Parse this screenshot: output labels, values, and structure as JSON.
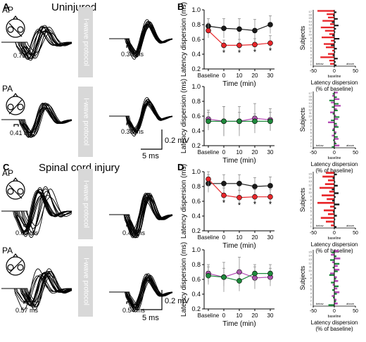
{
  "panels": {
    "A": "A",
    "B": "B",
    "C": "C",
    "D": "D"
  },
  "titles": {
    "uninjured": "Uninjured",
    "sci": "Spinal cord injury"
  },
  "protocol_label": "I-wave protocol",
  "coil": {
    "ap": "AP",
    "pa": "PA"
  },
  "waveforms": {
    "A_ap_pre": "0.73 ms",
    "A_ap_post": "0.36 ms",
    "A_pa_pre": "0.41 ms",
    "A_pa_post": "0.38 ms",
    "C_ap_pre": "0.67 ms",
    "C_ap_post": "0.42 ms",
    "C_pa_pre": "0.57 ms",
    "C_pa_post": "0.54 ms"
  },
  "scalebar": {
    "voltage": "0.2 mV",
    "time": "5 ms"
  },
  "axis_text": {
    "ylabel": "Latency dispersion (ms)",
    "xlabel": "Time (min)",
    "subjects": "Subjects",
    "bar_xlabel": "Latency dispersion",
    "bar_xlabel2": "(% of baseline)",
    "below": "below",
    "baseline": "baseline",
    "above": "above"
  },
  "colors": {
    "black": "#1a1a1a",
    "red": "#e8262a",
    "green": "#1f8a3c",
    "magenta": "#b44bb5",
    "gray": "#8c8c8c"
  },
  "chart_data": [
    {
      "id": "B_top",
      "type": "line",
      "categories": [
        "Baseline",
        "0",
        "10",
        "20",
        "30"
      ],
      "ylim": [
        0.2,
        1.0
      ],
      "yticks": [
        0.2,
        0.4,
        0.6,
        0.8,
        1.0
      ],
      "xlabel": "Time (min)",
      "ylabel": "Latency dispersion (ms)",
      "series": [
        {
          "color": "black",
          "values": [
            0.78,
            0.75,
            0.74,
            0.72,
            0.8
          ],
          "err": [
            0.1,
            0.13,
            0.14,
            0.15,
            0.12
          ]
        },
        {
          "color": "red",
          "values": [
            0.72,
            0.52,
            0.52,
            0.53,
            0.55
          ],
          "err": [
            0.1,
            0.07,
            0.08,
            0.08,
            0.1
          ]
        }
      ],
      "stars": [
        1,
        2,
        3,
        4
      ]
    },
    {
      "id": "B_bottom",
      "type": "line",
      "categories": [
        "Baseline",
        "0",
        "10",
        "20",
        "30"
      ],
      "ylim": [
        0.2,
        1.0
      ],
      "yticks": [
        0.2,
        0.4,
        0.6,
        0.8,
        1.0
      ],
      "xlabel": "Time (min)",
      "ylabel": "Latency dispersion (ms)",
      "series": [
        {
          "color": "magenta",
          "values": [
            0.56,
            0.53,
            0.53,
            0.57,
            0.55
          ],
          "err": [
            0.12,
            0.2,
            0.2,
            0.2,
            0.15
          ]
        },
        {
          "color": "green",
          "values": [
            0.53,
            0.53,
            0.53,
            0.53,
            0.53
          ],
          "err": [
            0.12,
            0.2,
            0.12,
            0.1,
            0.12
          ]
        }
      ],
      "stars": []
    },
    {
      "id": "D_top",
      "type": "line",
      "categories": [
        "Baseline",
        "0",
        "10",
        "20",
        "30"
      ],
      "ylim": [
        0.2,
        1.0
      ],
      "yticks": [
        0.2,
        0.4,
        0.6,
        0.8,
        1.0
      ],
      "xlabel": "Time (min)",
      "ylabel": "Latency dispersion (ms)",
      "series": [
        {
          "color": "black",
          "values": [
            0.84,
            0.84,
            0.84,
            0.8,
            0.81
          ],
          "err": [
            0.12,
            0.12,
            0.12,
            0.12,
            0.12
          ]
        },
        {
          "color": "red",
          "values": [
            0.9,
            0.68,
            0.65,
            0.66,
            0.66
          ],
          "err": [
            0.1,
            0.1,
            0.1,
            0.1,
            0.1
          ]
        }
      ],
      "stars": [
        1,
        2,
        3,
        4
      ]
    },
    {
      "id": "D_bottom",
      "type": "line",
      "categories": [
        "Baseline",
        "0",
        "10",
        "20",
        "30"
      ],
      "ylim": [
        0.2,
        1.0
      ],
      "yticks": [
        0.2,
        0.4,
        0.6,
        0.8,
        1.0
      ],
      "xlabel": "Time (min)",
      "ylabel": "Latency dispersion (ms)",
      "series": [
        {
          "color": "magenta",
          "values": [
            0.68,
            0.63,
            0.7,
            0.62,
            0.63
          ],
          "err": [
            0.12,
            0.2,
            0.2,
            0.15,
            0.12
          ]
        },
        {
          "color": "green",
          "values": [
            0.65,
            0.63,
            0.58,
            0.68,
            0.68
          ],
          "err": [
            0.12,
            0.12,
            0.14,
            0.12,
            0.12
          ]
        }
      ],
      "stars": []
    },
    {
      "id": "B_bar_top",
      "type": "bar",
      "orientation": "horizontal",
      "xlim": [
        -50,
        50
      ],
      "xticks": [
        -50,
        0,
        50
      ],
      "subjects": 17,
      "series_colors": [
        "red",
        "black"
      ],
      "values_a": [
        -40,
        -18,
        -15,
        -28,
        -10,
        -32,
        -22,
        -12,
        -30,
        -8,
        -25,
        -20,
        -5,
        -15,
        -33,
        -12,
        -10
      ],
      "values_b": [
        5,
        -3,
        8,
        -6,
        10,
        4,
        2,
        -5,
        12,
        3,
        -8,
        6,
        2,
        -4,
        8,
        3,
        5
      ]
    },
    {
      "id": "B_bar_bottom",
      "type": "bar",
      "orientation": "horizontal",
      "xlim": [
        -50,
        50
      ],
      "xticks": [
        -50,
        0,
        50
      ],
      "subjects": 17,
      "series_colors": [
        "magenta",
        "green"
      ],
      "values_a": [
        8,
        -5,
        12,
        -8,
        15,
        6,
        -10,
        4,
        9,
        -15,
        7,
        -4,
        5,
        -6,
        10,
        3,
        12
      ],
      "values_b": [
        -4,
        6,
        -12,
        10,
        -6,
        8,
        -4,
        12,
        -8,
        6,
        10,
        -5,
        4,
        8,
        -3,
        5,
        -6
      ]
    },
    {
      "id": "D_bar_top",
      "type": "bar",
      "orientation": "horizontal",
      "xlim": [
        -50,
        50
      ],
      "xticks": [
        -50,
        0,
        50
      ],
      "subjects": 15,
      "series_colors": [
        "red",
        "black"
      ],
      "values_a": [
        -20,
        -28,
        -15,
        -22,
        -35,
        -12,
        -30,
        -18,
        -40,
        -10,
        -25,
        -15,
        -32,
        -20,
        -8
      ],
      "values_b": [
        6,
        -4,
        2,
        8,
        -6,
        10,
        3,
        -5,
        12,
        4,
        -3,
        6,
        2,
        -2,
        5
      ]
    },
    {
      "id": "D_bar_bottom",
      "type": "bar",
      "orientation": "horizontal",
      "xlim": [
        -50,
        50
      ],
      "xticks": [
        -50,
        0,
        50
      ],
      "subjects": 15,
      "series_colors": [
        "magenta",
        "green"
      ],
      "values_a": [
        10,
        -8,
        14,
        -5,
        8,
        12,
        -10,
        6,
        9,
        -4,
        7,
        12,
        -6,
        5,
        8
      ],
      "values_b": [
        -6,
        5,
        -10,
        12,
        -4,
        8,
        -12,
        4,
        -8,
        10,
        -5,
        6,
        -3,
        4,
        -14
      ]
    }
  ]
}
